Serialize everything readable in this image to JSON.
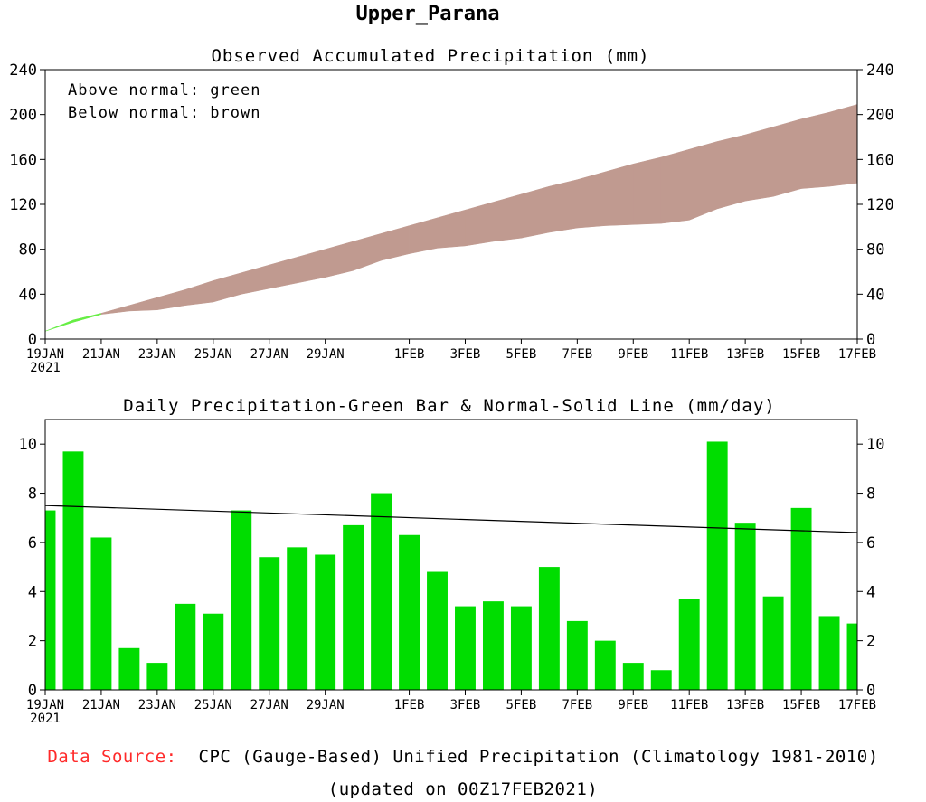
{
  "page_title": "Upper_Parana",
  "footer": {
    "source_label": "Data Source:",
    "source_text": "CPC (Gauge-Based) Unified Precipitation (Climatology 1981-2010)",
    "updated": "(updated on 00Z17FEB2021)"
  },
  "colors": {
    "above_normal": "#66ee44",
    "below_normal": "#c09a90",
    "bar": "#00dd00",
    "normal_line": "#000000"
  },
  "x_tick_labels": [
    "19JAN",
    "21JAN",
    "23JAN",
    "25JAN",
    "27JAN",
    "29JAN",
    "1FEB",
    "3FEB",
    "5FEB",
    "7FEB",
    "9FEB",
    "11FEB",
    "13FEB",
    "15FEB",
    "17FEB"
  ],
  "x_tick_days": [
    0,
    2,
    4,
    6,
    8,
    10,
    13,
    15,
    17,
    19,
    21,
    23,
    25,
    27,
    29
  ],
  "x_year_label": "2021",
  "chart_data": [
    {
      "type": "area",
      "title": "Observed Accumulated Precipitation (mm)",
      "legend": [
        "Above normal: green",
        "Below normal: brown"
      ],
      "legend_position": "top-left",
      "xlabel": "",
      "ylabel": "",
      "x_range": [
        "19JAN2021",
        "17FEB2021"
      ],
      "ylim": [
        0,
        240
      ],
      "y_ticks": [
        0,
        40,
        80,
        120,
        160,
        200,
        240
      ],
      "grid": false,
      "days": [
        "19JAN",
        "20JAN",
        "21JAN",
        "22JAN",
        "23JAN",
        "24JAN",
        "25JAN",
        "26JAN",
        "27JAN",
        "28JAN",
        "29JAN",
        "30JAN",
        "31JAN",
        "1FEB",
        "2FEB",
        "3FEB",
        "4FEB",
        "5FEB",
        "6FEB",
        "7FEB",
        "8FEB",
        "9FEB",
        "10FEB",
        "11FEB",
        "12FEB",
        "13FEB",
        "14FEB",
        "15FEB",
        "16FEB",
        "17FEB"
      ],
      "series": [
        {
          "name": "Observed",
          "values": [
            7,
            17,
            23,
            25,
            26,
            30,
            33,
            40,
            45,
            50,
            55,
            61,
            70,
            76,
            81,
            83,
            87,
            90,
            95,
            99,
            101,
            102,
            103,
            106,
            116,
            123,
            127,
            134,
            136,
            139
          ]
        },
        {
          "name": "Normal",
          "values": [
            7,
            15,
            22,
            30,
            37,
            44,
            52,
            59,
            66,
            73,
            80,
            87,
            94,
            101,
            108,
            115,
            122,
            129,
            136,
            142,
            149,
            156,
            162,
            169,
            176,
            182,
            189,
            196,
            202,
            209
          ]
        }
      ]
    },
    {
      "type": "bar",
      "title": "Daily Precipitation-Green Bar & Normal-Solid Line (mm/day)",
      "xlabel": "",
      "ylabel": "",
      "x_range": [
        "19JAN2021",
        "17FEB2021"
      ],
      "ylim": [
        0,
        11
      ],
      "y_ticks": [
        0,
        2,
        4,
        6,
        8,
        10
      ],
      "grid": false,
      "days": [
        "19JAN",
        "20JAN",
        "21JAN",
        "22JAN",
        "23JAN",
        "24JAN",
        "25JAN",
        "26JAN",
        "27JAN",
        "28JAN",
        "29JAN",
        "30JAN",
        "31JAN",
        "1FEB",
        "2FEB",
        "3FEB",
        "4FEB",
        "5FEB",
        "6FEB",
        "7FEB",
        "8FEB",
        "9FEB",
        "10FEB",
        "11FEB",
        "12FEB",
        "13FEB",
        "14FEB",
        "15FEB",
        "16FEB",
        "17FEB"
      ],
      "series": [
        {
          "name": "Daily",
          "values": [
            7.3,
            9.7,
            6.2,
            1.7,
            1.1,
            3.5,
            3.1,
            7.3,
            5.4,
            5.8,
            5.5,
            6.7,
            8.0,
            6.3,
            4.8,
            3.4,
            3.6,
            3.4,
            5.0,
            2.8,
            2.0,
            1.1,
            0.8,
            3.7,
            10.1,
            6.8,
            3.8,
            7.4,
            3.0,
            2.7
          ]
        },
        {
          "name": "Normal",
          "type": "line",
          "x": [
            0,
            29
          ],
          "values": [
            7.5,
            6.4
          ]
        }
      ]
    }
  ]
}
